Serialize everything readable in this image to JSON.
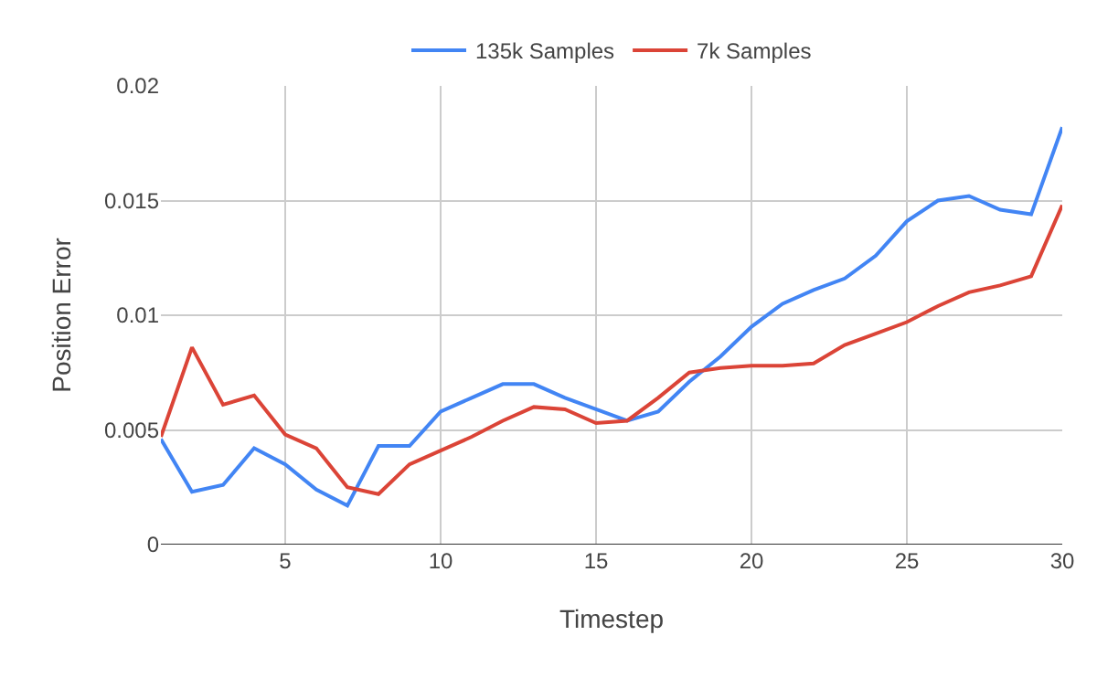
{
  "chart_data": {
    "type": "line",
    "xlabel": "Timestep",
    "ylabel": "Position Error",
    "x": [
      1,
      2,
      3,
      4,
      5,
      6,
      7,
      8,
      9,
      10,
      11,
      12,
      13,
      14,
      15,
      16,
      17,
      18,
      19,
      20,
      21,
      22,
      23,
      24,
      25,
      26,
      27,
      28,
      29,
      30
    ],
    "series": [
      {
        "name": "135k Samples",
        "color": "#4285f4",
        "values": [
          0.0046,
          0.0023,
          0.0026,
          0.0042,
          0.0035,
          0.0024,
          0.0017,
          0.0043,
          0.0043,
          0.0058,
          0.0064,
          0.007,
          0.007,
          0.0064,
          0.0059,
          0.0054,
          0.0058,
          0.0071,
          0.0082,
          0.0095,
          0.0105,
          0.0111,
          0.0116,
          0.0126,
          0.0141,
          0.015,
          0.0152,
          0.0146,
          0.0144,
          0.0182
        ]
      },
      {
        "name": "7k Samples",
        "color": "#db4437",
        "values": [
          0.0047,
          0.0086,
          0.0061,
          0.0065,
          0.0048,
          0.0042,
          0.0025,
          0.0022,
          0.0035,
          0.0041,
          0.0047,
          0.0054,
          0.006,
          0.0059,
          0.0053,
          0.0054,
          0.0064,
          0.0075,
          0.0077,
          0.0078,
          0.0078,
          0.0079,
          0.0087,
          0.0092,
          0.0097,
          0.0104,
          0.011,
          0.0113,
          0.0117,
          0.0148
        ]
      }
    ],
    "xlim": [
      1,
      30
    ],
    "xticks": [
      5,
      10,
      15,
      20,
      25,
      30
    ],
    "ylim": [
      0,
      0.02
    ],
    "yticks": [
      0,
      0.005,
      0.01,
      0.015,
      0.02
    ],
    "grid": true,
    "legend": "top",
    "marker": "none",
    "line_style": "solid"
  }
}
